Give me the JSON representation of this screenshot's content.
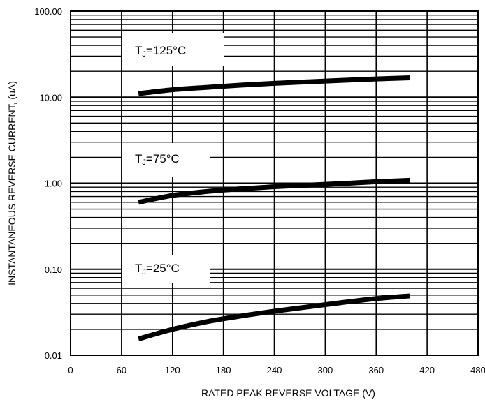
{
  "chart_data": {
    "type": "line",
    "title": "",
    "xlabel": "RATED PEAK REVERSE VOLTAGE (V)",
    "ylabel": "INSTANTANEOUS REVERSE CURRENT, (uA)",
    "x_scale": "linear",
    "y_scale": "log",
    "xlim": [
      0,
      480
    ],
    "ylim": [
      0.01,
      100
    ],
    "x_ticks": [
      0,
      60,
      120,
      180,
      240,
      300,
      360,
      420,
      480
    ],
    "x_tick_labels": [
      "0",
      "60",
      "120",
      "180",
      "240",
      "300",
      "360",
      "420",
      "480"
    ],
    "y_ticks": [
      0.01,
      0.1,
      1,
      10,
      100
    ],
    "y_tick_labels": [
      "0.01",
      "0.10",
      "1.00",
      "10.00",
      "100.00"
    ],
    "grid": true,
    "series": [
      {
        "name": "T_J=125°C",
        "label_main": "T",
        "label_sub": "J",
        "label_rest": "=125°C",
        "x": [
          80,
          120,
          160,
          200,
          240,
          280,
          320,
          360,
          400
        ],
        "y": [
          11,
          12.2,
          13,
          13.8,
          14.5,
          15.1,
          15.7,
          16.3,
          16.8
        ]
      },
      {
        "name": "T_J=75°C",
        "label_main": "T",
        "label_sub": "J",
        "label_rest": "=75°C",
        "x": [
          80,
          120,
          160,
          200,
          240,
          280,
          320,
          360,
          400
        ],
        "y": [
          0.6,
          0.72,
          0.8,
          0.86,
          0.91,
          0.95,
          0.99,
          1.04,
          1.08
        ]
      },
      {
        "name": "T_J=25°C",
        "label_main": "T",
        "label_sub": "J",
        "label_rest": "=25°C",
        "x": [
          80,
          120,
          160,
          200,
          240,
          280,
          320,
          360,
          400
        ],
        "y": [
          0.0155,
          0.02,
          0.0245,
          0.0285,
          0.0325,
          0.0365,
          0.041,
          0.0455,
          0.049
        ]
      }
    ]
  }
}
